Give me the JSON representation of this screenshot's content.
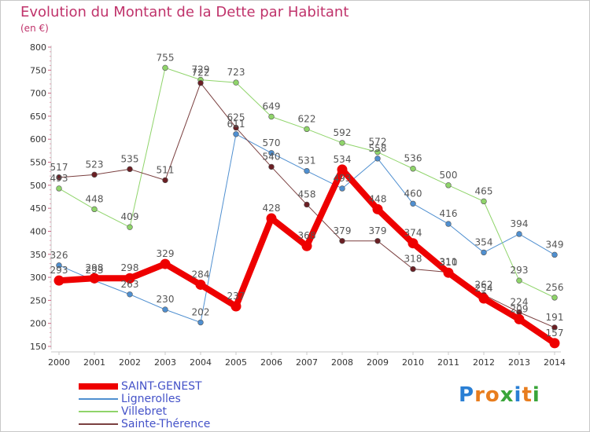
{
  "header": {
    "title": "Evolution du Montant de la Dette par Habitant",
    "subtitle": "(en €)"
  },
  "brand": {
    "text": "Proxiti",
    "letter_colors": [
      "#2a7fd4",
      "#e87d1e",
      "#e87d1e",
      "#3aa53a",
      "#2a7fd4",
      "#e87d1e",
      "#3aa53a"
    ]
  },
  "chart_data": {
    "type": "line",
    "x": [
      "2000",
      "2001",
      "2002",
      "2003",
      "2004",
      "2005",
      "2006",
      "2007",
      "2008",
      "2009",
      "2010",
      "2011",
      "2012",
      "2013",
      "2014"
    ],
    "ylim": [
      150,
      800
    ],
    "yticks": [
      150,
      200,
      250,
      300,
      350,
      400,
      450,
      500,
      550,
      600,
      650,
      700,
      750,
      800
    ],
    "grid": false,
    "legend_position": "bottom-left",
    "series": [
      {
        "name": "Lignerolles",
        "color": "#4f8fd0",
        "marker": "#4f8fd0",
        "width": 1,
        "values": [
          326,
          293,
          263,
          230,
          202,
          611,
          570,
          531,
          493,
          558,
          460,
          416,
          354,
          394,
          349
        ]
      },
      {
        "name": "Villebret",
        "color": "#8fd46a",
        "marker": "#8fd46a",
        "width": 1,
        "values": [
          493,
          448,
          409,
          755,
          729,
          723,
          649,
          622,
          592,
          572,
          536,
          500,
          465,
          293,
          256
        ]
      },
      {
        "name": "Sainte-Thérence",
        "color": "#7a3f3f",
        "marker": "#6b1f24",
        "width": 1,
        "values": [
          517,
          523,
          535,
          511,
          722,
          625,
          540,
          458,
          379,
          379,
          318,
          311,
          262,
          224,
          191
        ]
      },
      {
        "name": "SAINT-GENEST",
        "color": "#ee0000",
        "marker": "#ee0000",
        "width": 8,
        "values": [
          293,
          298,
          298,
          329,
          284,
          237,
          428,
          368,
          534,
          448,
          374,
          310,
          254,
          209,
          157
        ]
      }
    ]
  }
}
